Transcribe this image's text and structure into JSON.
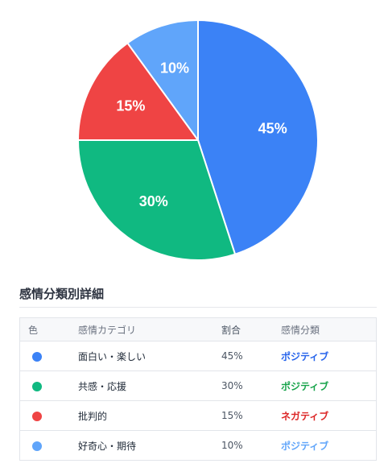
{
  "chart_data": {
    "type": "pie",
    "categories": [
      "面白い・楽しい",
      "共感・応援",
      "批判的",
      "好奇心・期待"
    ],
    "values": [
      45,
      30,
      15,
      10
    ],
    "labels": [
      "45%",
      "30%",
      "15%",
      "10%"
    ],
    "colors": [
      "#3b82f6",
      "#10b981",
      "#ef4444",
      "#60a5fa"
    ],
    "start": "12 o'clock",
    "direction": "clockwise"
  },
  "section": {
    "title": "感情分類別詳細"
  },
  "table": {
    "headers": {
      "color": "色",
      "category": "感情カテゴリ",
      "ratio": "割合",
      "sentiment": "感情分類"
    },
    "rows": [
      {
        "dot_color": "#3b82f6",
        "category": "面白い・楽しい",
        "ratio": "45%",
        "sentiment": "ポジティブ",
        "sentiment_color": "#2563eb"
      },
      {
        "dot_color": "#10b981",
        "category": "共感・応援",
        "ratio": "30%",
        "sentiment": "ポジティブ",
        "sentiment_color": "#16a34a"
      },
      {
        "dot_color": "#ef4444",
        "category": "批判的",
        "ratio": "15%",
        "sentiment": "ネガティブ",
        "sentiment_color": "#dc2626"
      },
      {
        "dot_color": "#60a5fa",
        "category": "好奇心・期待",
        "ratio": "10%",
        "sentiment": "ポジティブ",
        "sentiment_color": "#60a5fa"
      }
    ]
  }
}
